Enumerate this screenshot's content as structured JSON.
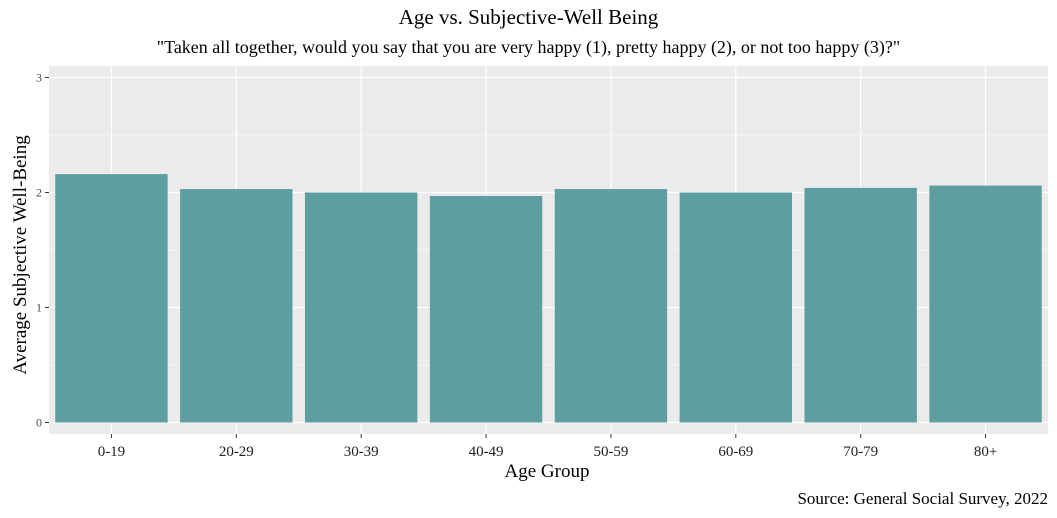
{
  "chart_data": {
    "type": "bar",
    "title": "Age vs. Subjective-Well Being",
    "subtitle": "\"Taken all together, would you say that you are very happy (1), pretty happy (2), or not too happy (3)?\"",
    "xlabel": "Age Group",
    "ylabel": "Average Subjective Well-Being",
    "caption": "Source: General Social Survey, 2022",
    "categories": [
      "0-19",
      "20-29",
      "30-39",
      "40-49",
      "50-59",
      "60-69",
      "70-79",
      "80+"
    ],
    "values": [
      2.16,
      2.03,
      2.0,
      1.97,
      2.03,
      2.0,
      2.04,
      2.06
    ],
    "ylim": [
      -0.1,
      3.1
    ],
    "yticks": [
      0,
      1,
      2,
      3
    ],
    "grid": true,
    "colors": {
      "bar": "#5f9ea0",
      "panel": "#ebebeb",
      "grid": "#ffffff"
    }
  }
}
